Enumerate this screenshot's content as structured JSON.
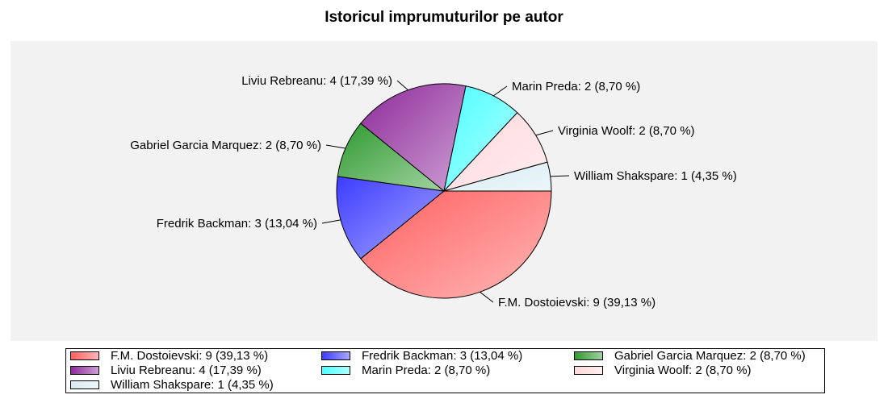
{
  "chart_data": {
    "type": "pie",
    "title": "Istoricul imprumuturilor pe autor",
    "slices": [
      {
        "label": "F.M. Dostoievski",
        "value": 9,
        "percent": "39,13 %",
        "text": "F.M. Dostoievski: 9 (39,13 %)",
        "color": "#ff6060"
      },
      {
        "label": "Fredrik Backman",
        "value": 3,
        "percent": "13,04 %",
        "text": "Fredrik Backman: 3 (13,04 %)",
        "color": "#3c3cff"
      },
      {
        "label": "Gabriel Garcia Marquez",
        "value": 2,
        "percent": "8,70 %",
        "text": "Gabriel Garcia Marquez: 2 (8,70 %)",
        "color": "#2f9a2f"
      },
      {
        "label": "Liviu Rebreanu",
        "value": 4,
        "percent": "17,39 %",
        "text": "Liviu Rebreanu: 4 (17,39 %)",
        "color": "#8e2a9a"
      },
      {
        "label": "Marin Preda",
        "value": 2,
        "percent": "8,70 %",
        "text": "Marin Preda: 2 (8,70 %)",
        "color": "#4dffff"
      },
      {
        "label": "Virginia Woolf",
        "value": 2,
        "percent": "8,70 %",
        "text": "Virginia Woolf: 2 (8,70 %)",
        "color": "#ffd8dc"
      },
      {
        "label": "William Shakspare",
        "value": 1,
        "percent": "4,35 %",
        "text": "William Shakspare: 1 (4,35 %)",
        "color": "#d6ecf2"
      }
    ],
    "legend": "bottom"
  }
}
